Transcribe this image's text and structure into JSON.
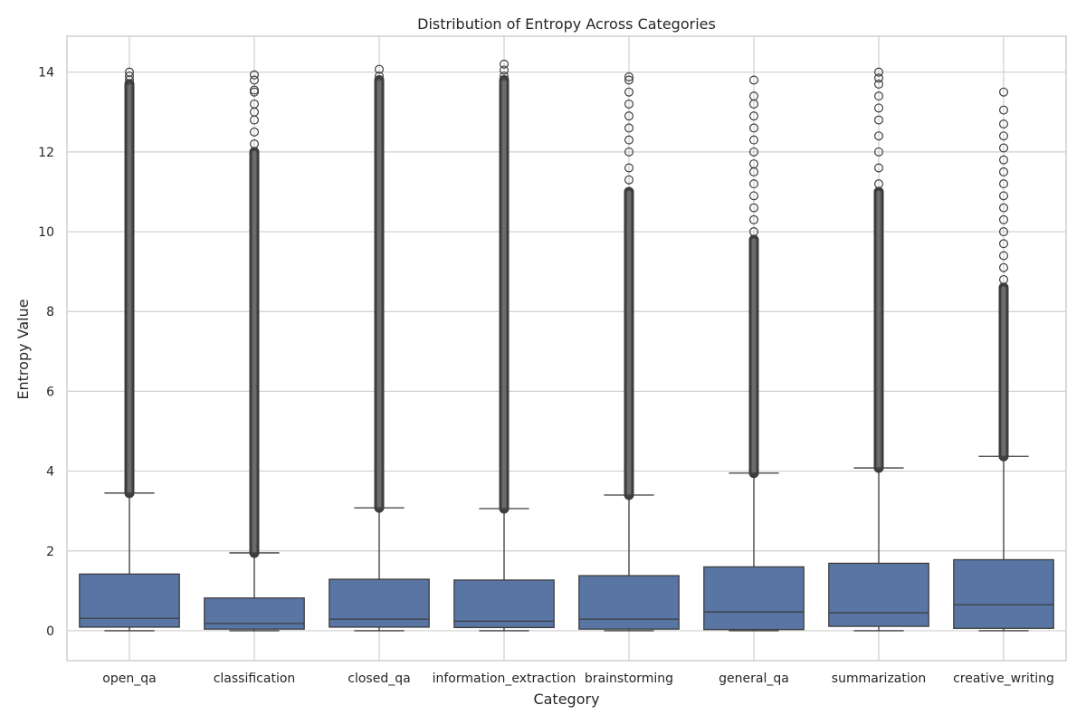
{
  "chart_data": {
    "type": "box",
    "title": "Distribution of Entropy Across Categories",
    "xlabel": "Category",
    "ylabel": "Entropy Value",
    "ylim": [
      -0.75,
      14.9
    ],
    "yticks": [
      0,
      2,
      4,
      6,
      8,
      10,
      12,
      14
    ],
    "grid": true,
    "colors": {
      "box_fill": "#5875a4",
      "line": "#3d3d3d",
      "grid": "#cfcfcf",
      "frame": "#cfcfcf"
    },
    "categories": [
      "open_qa",
      "classification",
      "closed_qa",
      "information_extraction",
      "brainstorming",
      "general_qa",
      "summarization",
      "creative_writing"
    ],
    "boxes": [
      {
        "category": "open_qa",
        "q1": 0.09,
        "median": 0.31,
        "q3": 1.42,
        "whisker_low": 0.0,
        "whisker_high": 3.45,
        "outlier_max": 14.02,
        "outlier_dense_top": 13.7,
        "sparse_outliers": [
          13.8,
          13.9,
          14.0
        ]
      },
      {
        "category": "classification",
        "q1": 0.04,
        "median": 0.18,
        "q3": 0.82,
        "whisker_low": 0.0,
        "whisker_high": 1.95,
        "outlier_max": 13.93,
        "outlier_dense_top": 12.0,
        "sparse_outliers": [
          12.2,
          12.5,
          12.8,
          13.0,
          13.2,
          13.5,
          13.55,
          13.8,
          13.93
        ]
      },
      {
        "category": "closed_qa",
        "q1": 0.09,
        "median": 0.29,
        "q3": 1.29,
        "whisker_low": 0.0,
        "whisker_high": 3.08,
        "outlier_max": 14.07,
        "outlier_dense_top": 13.8,
        "sparse_outliers": [
          13.9,
          14.07
        ]
      },
      {
        "category": "information_extraction",
        "q1": 0.08,
        "median": 0.24,
        "q3": 1.27,
        "whisker_low": 0.0,
        "whisker_high": 3.06,
        "outlier_max": 14.2,
        "outlier_dense_top": 13.8,
        "sparse_outliers": [
          13.9,
          14.05,
          14.2
        ]
      },
      {
        "category": "brainstorming",
        "q1": 0.04,
        "median": 0.29,
        "q3": 1.38,
        "whisker_low": 0.0,
        "whisker_high": 3.4,
        "outlier_max": 13.88,
        "outlier_dense_top": 11.0,
        "sparse_outliers": [
          11.3,
          11.6,
          12.0,
          12.3,
          12.6,
          12.9,
          13.2,
          13.5,
          13.8,
          13.88
        ]
      },
      {
        "category": "general_qa",
        "q1": 0.03,
        "median": 0.47,
        "q3": 1.6,
        "whisker_low": 0.0,
        "whisker_high": 3.95,
        "outlier_max": 13.8,
        "outlier_dense_top": 9.8,
        "sparse_outliers": [
          10.0,
          10.3,
          10.6,
          10.9,
          11.2,
          11.5,
          11.7,
          12.0,
          12.3,
          12.6,
          12.9,
          13.2,
          13.4,
          13.8
        ]
      },
      {
        "category": "summarization",
        "q1": 0.11,
        "median": 0.45,
        "q3": 1.69,
        "whisker_low": 0.0,
        "whisker_high": 4.08,
        "outlier_max": 14.0,
        "outlier_dense_top": 11.0,
        "sparse_outliers": [
          11.2,
          11.6,
          12.0,
          12.4,
          12.8,
          13.1,
          13.4,
          13.7,
          13.85,
          14.0
        ]
      },
      {
        "category": "creative_writing",
        "q1": 0.06,
        "median": 0.65,
        "q3": 1.78,
        "whisker_low": 0.0,
        "whisker_high": 4.37,
        "outlier_max": 13.5,
        "outlier_dense_top": 8.6,
        "sparse_outliers": [
          8.8,
          9.1,
          9.4,
          9.7,
          10.0,
          10.3,
          10.6,
          10.9,
          11.2,
          11.5,
          11.8,
          12.1,
          12.4,
          12.7,
          13.05,
          13.5
        ]
      }
    ]
  }
}
